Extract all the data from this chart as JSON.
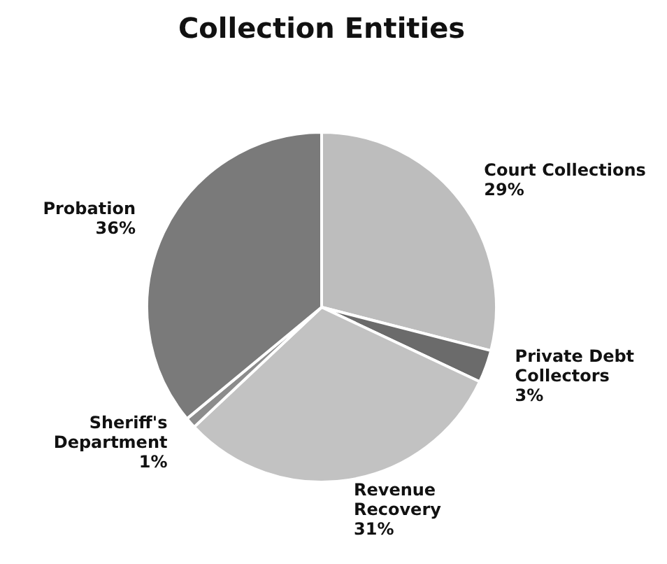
{
  "chart_data": {
    "type": "pie",
    "title": "Collection Entities",
    "categories": [
      "Court Collections",
      "Private Debt Collectors",
      "Revenue Recovery",
      "Sheriff's Department",
      "Probation"
    ],
    "values": [
      29,
      3,
      31,
      1,
      36
    ],
    "value_labels": [
      "29%",
      "3%",
      "31%",
      "1%",
      "36%"
    ],
    "colors": [
      "#bdbdbd",
      "#6b6b6b",
      "#c2c2c2",
      "#8c8c8c",
      "#7a7a7a"
    ],
    "legend": false
  }
}
